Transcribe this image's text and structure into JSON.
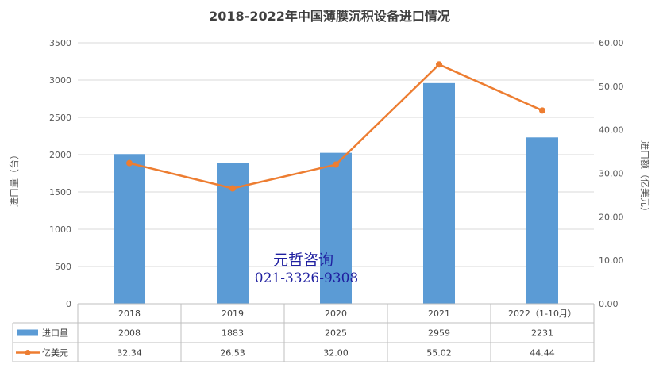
{
  "chart_data": {
    "type": "bar",
    "title": "2018-2022年中国薄膜沉积设备进口情况",
    "categories": [
      "2018",
      "2019",
      "2020",
      "2021",
      "2022（1-10月）"
    ],
    "series": [
      {
        "name": "进口量",
        "type": "bar",
        "axis": "left",
        "color": "#5b9bd5",
        "values": [
          2008,
          1883,
          2025,
          2959,
          2231
        ],
        "labels": [
          "2008",
          "1883",
          "2025",
          "2959",
          "2231"
        ]
      },
      {
        "name": "亿美元",
        "type": "line",
        "axis": "right",
        "color": "#ed7d31",
        "values": [
          32.34,
          26.53,
          32.0,
          55.02,
          44.44
        ],
        "labels": [
          "32.34",
          "26.53",
          "32.00",
          "55.02",
          "44.44"
        ]
      }
    ],
    "ylabel": "进口量（台）",
    "y2label": "进口额（亿美元）",
    "ylim": [
      0,
      3500
    ],
    "y2lim": [
      0,
      60
    ],
    "yticks": [
      "0",
      "500",
      "1000",
      "1500",
      "2000",
      "2500",
      "3000",
      "3500"
    ],
    "y2ticks": [
      "0.00",
      "10.00",
      "20.00",
      "30.00",
      "40.00",
      "50.00",
      "60.00"
    ],
    "grid": true,
    "data_table": true
  },
  "watermark": {
    "line1": "元哲咨询",
    "line2": "021-3326-9308"
  }
}
